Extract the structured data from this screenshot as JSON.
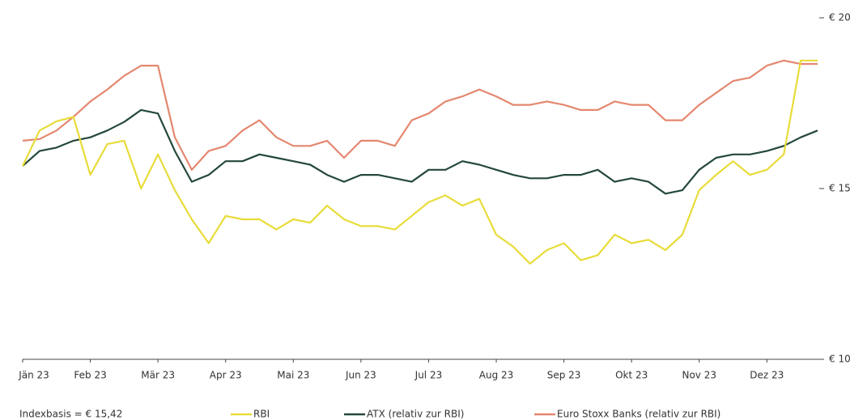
{
  "chart_data": {
    "type": "line",
    "annotation": "Indexbasis = € 15,42",
    "categories": [
      "Jän 23",
      null,
      null,
      null,
      "Feb 23",
      null,
      null,
      null,
      "Mär 23",
      null,
      null,
      null,
      "Apr 23",
      null,
      null,
      null,
      "Mai 23",
      null,
      null,
      null,
      "Jun 23",
      null,
      null,
      null,
      "Jul 23",
      null,
      null,
      null,
      "Aug 23",
      null,
      null,
      null,
      "Sep 23",
      null,
      null,
      null,
      "Okt 23",
      null,
      null,
      null,
      "Nov 23",
      null,
      null,
      null,
      "Dez 23",
      null,
      null,
      null
    ],
    "ylim": [
      10,
      20
    ],
    "yticks": [
      {
        "value": 10,
        "label": "€ 10"
      },
      {
        "value": 15,
        "label": "€ 15"
      },
      {
        "value": 20,
        "label": "€ 20"
      }
    ],
    "grid": false,
    "legend": "bottom",
    "series": [
      {
        "name": "RBI",
        "color": "#e8dc3a",
        "values": [
          15.66,
          16.7,
          16.97,
          17.1,
          15.4,
          16.3,
          16.4,
          15.0,
          16.0,
          14.95,
          14.1,
          13.4,
          14.2,
          14.1,
          14.1,
          13.8,
          14.1,
          14.0,
          14.5,
          14.1,
          13.9,
          13.9,
          13.8,
          14.2,
          14.6,
          14.8,
          14.5,
          14.7,
          13.65,
          13.3,
          12.8,
          13.2,
          13.4,
          12.9,
          13.05,
          13.65,
          13.4,
          13.5,
          13.2,
          13.65,
          14.95,
          15.4,
          15.8,
          15.4,
          15.55,
          16.0,
          18.75,
          18.75
        ]
      },
      {
        "name": "ATX (relativ zur RBI)",
        "color": "#24483a",
        "values": [
          15.66,
          16.1,
          16.2,
          16.4,
          16.5,
          16.7,
          16.95,
          17.3,
          17.2,
          16.1,
          15.2,
          15.4,
          15.8,
          15.8,
          16.0,
          15.9,
          15.8,
          15.7,
          15.4,
          15.2,
          15.4,
          15.4,
          15.3,
          15.2,
          15.55,
          15.55,
          15.8,
          15.7,
          15.55,
          15.4,
          15.3,
          15.3,
          15.4,
          15.4,
          15.55,
          15.2,
          15.3,
          15.2,
          14.85,
          14.95,
          15.55,
          15.9,
          16.0,
          16.0,
          16.1,
          16.25,
          16.5,
          16.7
        ]
      },
      {
        "name": "Euro Stoxx Banks (relativ zur RBI)",
        "color": "#e4876f",
        "values": [
          16.4,
          16.45,
          16.7,
          17.1,
          17.55,
          17.9,
          18.3,
          18.6,
          18.6,
          16.5,
          15.55,
          16.1,
          16.25,
          16.7,
          17.0,
          16.5,
          16.25,
          16.25,
          16.4,
          15.9,
          16.4,
          16.4,
          16.25,
          17.0,
          17.2,
          17.55,
          17.7,
          17.9,
          17.7,
          17.45,
          17.45,
          17.55,
          17.45,
          17.3,
          17.3,
          17.55,
          17.45,
          17.45,
          17.0,
          17.0,
          17.45,
          17.8,
          18.15,
          18.25,
          18.6,
          18.75,
          18.65,
          18.65
        ]
      }
    ]
  }
}
